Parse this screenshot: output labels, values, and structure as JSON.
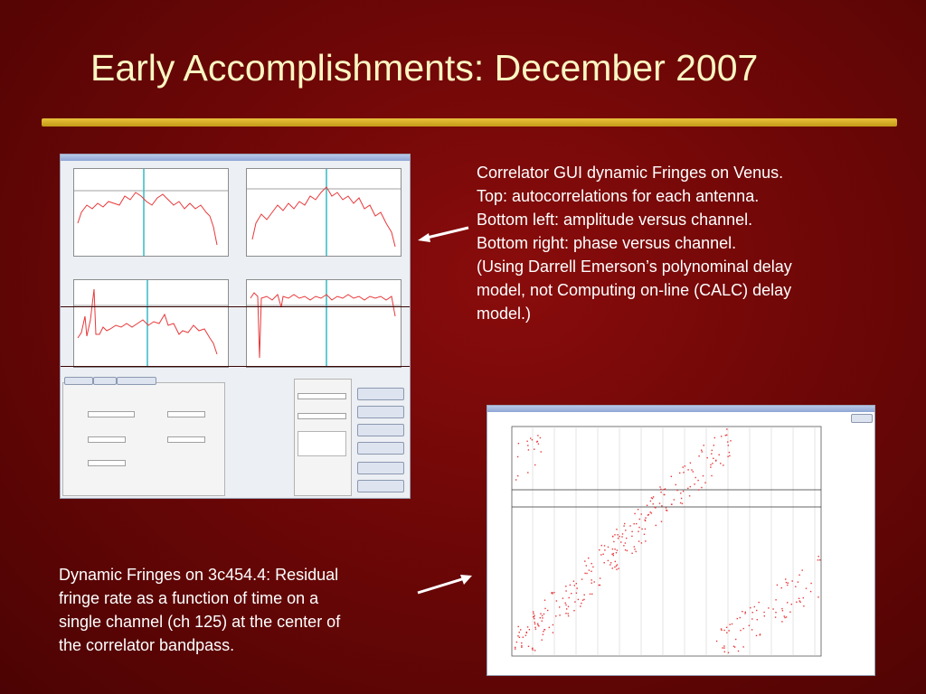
{
  "slide": {
    "title": "Early Accomplishments: December 2007"
  },
  "caption_top": {
    "lines": [
      "Correlator GUI dynamic Fringes on Venus.",
      "Top: autocorrelations for each antenna.",
      "Bottom left: amplitude versus channel.",
      "Bottom right: phase versus channel.",
      "(Using Darrell Emerson’s polynominal delay",
      "model, not Computing on-line (CALC) delay",
      "model.)"
    ]
  },
  "caption_bottom": {
    "lines": [
      "Dynamic Fringes on 3c454.4: Residual",
      "fringe rate as a function of time on a",
      "single channel (ch 125) at the center of",
      "the correlator bandpass."
    ]
  },
  "colors": {
    "title": "#fbf6c2",
    "rule": "#e2b72e",
    "trace": "#e8383a",
    "cursor": "#3fc0c8",
    "arrow": "#ffffff"
  },
  "icons": {
    "arrow_top": "arrow-left-icon",
    "arrow_bottom": "arrow-right-icon"
  }
}
